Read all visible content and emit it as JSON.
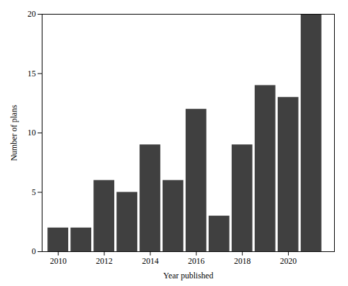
{
  "chart_data": {
    "type": "bar",
    "x": [
      2010,
      2011,
      2012,
      2013,
      2014,
      2015,
      2016,
      2017,
      2018,
      2019,
      2020,
      2021
    ],
    "values": [
      2,
      2,
      6,
      5,
      9,
      6,
      12,
      3,
      9,
      14,
      13,
      20
    ],
    "color": "#404040",
    "xlabel": "Year published",
    "ylabel": "Number of plans",
    "xlim": [
      2009.3,
      2022.0
    ],
    "xticks": [
      2010,
      2012,
      2014,
      2016,
      2018,
      2020
    ],
    "ylim": [
      0,
      20
    ],
    "yticks": [
      0,
      5,
      10,
      15,
      20
    ],
    "grid": false
  }
}
